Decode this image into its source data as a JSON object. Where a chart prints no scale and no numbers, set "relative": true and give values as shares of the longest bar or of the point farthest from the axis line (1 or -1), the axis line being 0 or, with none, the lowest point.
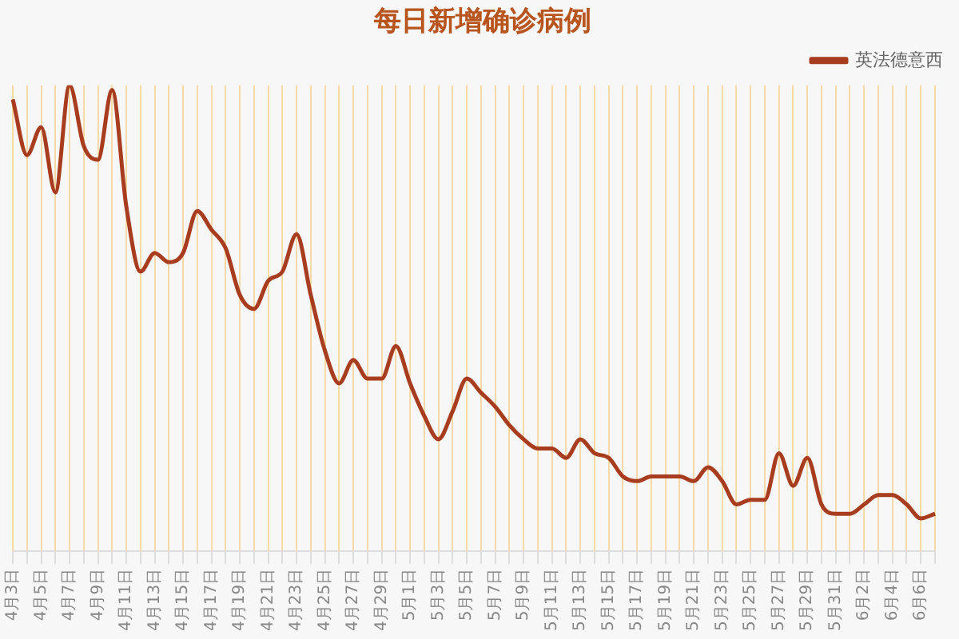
{
  "chart_data": {
    "type": "line",
    "title": "每日新增确诊病例",
    "relative": true,
    "legend": "top right",
    "grid": "x",
    "marker": "none",
    "line_style": "solid",
    "categories": [
      "4月3日",
      null,
      "4月5日",
      null,
      "4月7日",
      null,
      "4月9日",
      null,
      "4月11日",
      null,
      "4月13日",
      null,
      "4月15日",
      null,
      "4月17日",
      null,
      "4月19日",
      null,
      "4月21日",
      null,
      "4月23日",
      null,
      "4月25日",
      null,
      "4月27日",
      null,
      "4月29日",
      null,
      "5月1日",
      null,
      "5月3日",
      null,
      "5月5日",
      null,
      "5月7日",
      null,
      "5月9日",
      null,
      "5月11日",
      null,
      "5月13日",
      null,
      "5月15日",
      null,
      "5月17日",
      null,
      "5月19日",
      null,
      "5月21日",
      null,
      "5月23日",
      null,
      "5月25日",
      null,
      "5月27日",
      null,
      "5月29日",
      null,
      "5月31日",
      null,
      "6月2日",
      null,
      "6月4日",
      null,
      "6月6日",
      null
    ],
    "series": [
      {
        "name": "英法德意西",
        "color": "#a83c1e",
        "values": [
          0.97,
          0.85,
          0.91,
          0.77,
          1,
          0.87,
          0.84,
          0.99,
          0.74,
          0.6,
          0.64,
          0.62,
          0.64,
          0.73,
          0.69,
          0.65,
          0.55,
          0.52,
          0.58,
          0.6,
          0.68,
          0.55,
          0.43,
          0.36,
          0.41,
          0.37,
          0.37,
          0.44,
          0.36,
          0.29,
          0.24,
          0.3,
          0.37,
          0.34,
          0.31,
          0.27,
          0.24,
          0.22,
          0.22,
          0.2,
          0.24,
          0.21,
          0.2,
          0.16,
          0.15,
          0.16,
          0.16,
          0.16,
          0.15,
          0.18,
          0.15,
          0.1,
          0.11,
          0.11,
          0.21,
          0.14,
          0.2,
          0.1,
          0.08,
          0.08,
          0.1,
          0.12,
          0.12,
          0.1,
          0.07,
          0.08
        ]
      }
    ]
  }
}
